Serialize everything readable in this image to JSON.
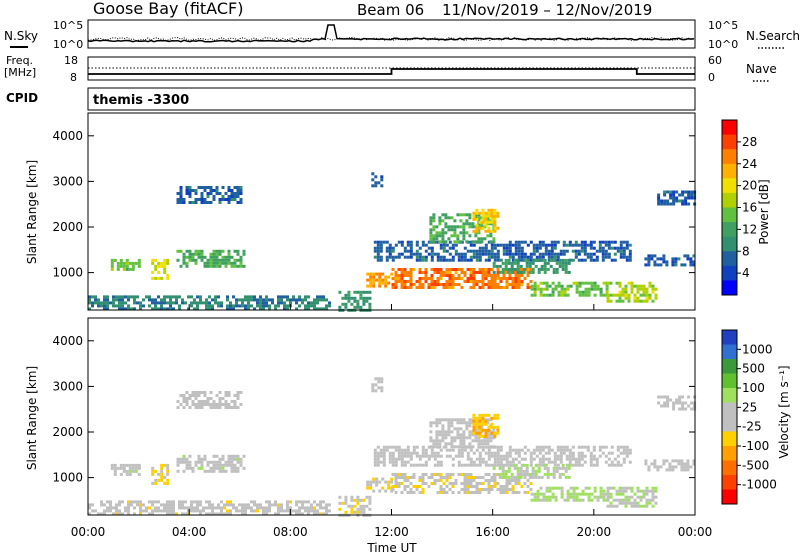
{
  "header": {
    "station": "Goose Bay (fitACF)",
    "beam": "Beam 06",
    "dates": "11/Nov/2019 – 12/Nov/2019"
  },
  "noise_panel": {
    "left_label": "N.Sky",
    "right_label": "N.Search",
    "left_ticks": [
      "10^5",
      "10^0"
    ],
    "right_ticks": [
      "10^5",
      "10^0"
    ]
  },
  "freq_panel": {
    "left_label_1": "Freq.",
    "left_label_2": "[MHz]",
    "right_label": "Nave",
    "left_ticks": [
      "18",
      "8"
    ],
    "right_ticks": [
      "60",
      "0"
    ]
  },
  "cpid_panel": {
    "label": "CPID",
    "mode": "themis -3300"
  },
  "power_colorbar": {
    "label": "Power [dB]",
    "ticks": [
      "28",
      "24",
      "20",
      "16",
      "12",
      "8",
      "4"
    ],
    "colors": [
      "#ff0000",
      "#ff4000",
      "#ff8000",
      "#ffb000",
      "#f0e000",
      "#b0d000",
      "#60c040",
      "#40a060",
      "#309070",
      "#2060a0",
      "#1040c0",
      "#0000ff"
    ]
  },
  "velocity_colorbar": {
    "label": "Velocity [m s⁻¹]",
    "ticks": [
      "1000",
      "500",
      "100",
      "25",
      "-25",
      "-100",
      "-500",
      "-1000"
    ],
    "colors": [
      "#2040c0",
      "#3070d0",
      "#3a9a3a",
      "#60c030",
      "#a0e060",
      "#c0c0c0",
      "#c0c0c0",
      "#ffd000",
      "#ffa000",
      "#ff7000",
      "#ff4000",
      "#ff0000"
    ]
  },
  "chart_data": [
    {
      "type": "heatmap",
      "title": "Power",
      "ylabel": "Slant Range [km]",
      "yticks": [
        "1000",
        "2000",
        "3000",
        "4000"
      ],
      "ylim": [
        180,
        4500
      ],
      "xlim": [
        0,
        24
      ],
      "zlabel": "Power [dB]",
      "zlim": [
        0,
        30
      ],
      "regions": [
        {
          "t0": 0.0,
          "t1": 9.6,
          "r0": 200,
          "r1": 500,
          "value": 8
        },
        {
          "t0": 0.9,
          "t1": 2.0,
          "r0": 1100,
          "r1": 1300,
          "value": 14
        },
        {
          "t0": 2.5,
          "t1": 3.2,
          "r0": 850,
          "r1": 1300,
          "value": 18
        },
        {
          "t0": 3.5,
          "t1": 6.2,
          "r0": 1150,
          "r1": 1500,
          "value": 12
        },
        {
          "t0": 3.5,
          "t1": 6.0,
          "r0": 2550,
          "r1": 2900,
          "value": 6
        },
        {
          "t0": 9.9,
          "t1": 11.2,
          "r0": 200,
          "r1": 600,
          "value": 10
        },
        {
          "t0": 11.0,
          "t1": 12.0,
          "r0": 700,
          "r1": 1000,
          "value": 22
        },
        {
          "t0": 11.3,
          "t1": 21.5,
          "r0": 1300,
          "r1": 1700,
          "value": 6
        },
        {
          "t0": 12.0,
          "t1": 17.5,
          "r0": 700,
          "r1": 1100,
          "value": 24
        },
        {
          "t0": 13.5,
          "t1": 16.0,
          "r0": 1700,
          "r1": 2300,
          "value": 12
        },
        {
          "t0": 15.2,
          "t1": 16.2,
          "r0": 1900,
          "r1": 2400,
          "value": 20
        },
        {
          "t0": 16.0,
          "t1": 19.0,
          "r0": 1000,
          "r1": 1300,
          "value": 10
        },
        {
          "t0": 17.5,
          "t1": 20.5,
          "r0": 500,
          "r1": 800,
          "value": 14
        },
        {
          "t0": 20.5,
          "t1": 22.5,
          "r0": 400,
          "r1": 800,
          "value": 16
        },
        {
          "t0": 22.0,
          "t1": 24.0,
          "r0": 1200,
          "r1": 1400,
          "value": 6
        },
        {
          "t0": 22.5,
          "t1": 24.0,
          "r0": 2500,
          "r1": 2800,
          "value": 6
        },
        {
          "t0": 11.2,
          "t1": 11.6,
          "r0": 2900,
          "r1": 3200,
          "value": 6
        }
      ]
    },
    {
      "type": "heatmap",
      "title": "Velocity",
      "ylabel": "Slant Range [km]",
      "yticks": [
        "1000",
        "2000",
        "3000",
        "4000"
      ],
      "ylim": [
        180,
        4500
      ],
      "xlim": [
        0,
        24
      ],
      "zlabel": "Velocity [m s⁻¹]",
      "zlim": [
        -1000,
        1000
      ],
      "regions": [
        {
          "t0": 0.0,
          "t1": 9.6,
          "r0": 200,
          "r1": 500,
          "value": -60
        },
        {
          "t0": 0.9,
          "t1": 2.0,
          "r0": 1100,
          "r1": 1300,
          "value": 80
        },
        {
          "t0": 2.5,
          "t1": 3.2,
          "r0": 850,
          "r1": 1300,
          "value": -200
        },
        {
          "t0": 3.5,
          "t1": 6.2,
          "r0": 1150,
          "r1": 1500,
          "value": 60
        },
        {
          "t0": 3.5,
          "t1": 6.0,
          "r0": 2550,
          "r1": 2900,
          "value": 0
        },
        {
          "t0": 9.9,
          "t1": 11.2,
          "r0": 200,
          "r1": 600,
          "value": -80
        },
        {
          "t0": 11.0,
          "t1": 12.0,
          "r0": 700,
          "r1": 1000,
          "value": -120
        },
        {
          "t0": 11.3,
          "t1": 21.5,
          "r0": 1300,
          "r1": 1700,
          "value": 0
        },
        {
          "t0": 12.0,
          "t1": 17.5,
          "r0": 700,
          "r1": 1100,
          "value": -100
        },
        {
          "t0": 13.5,
          "t1": 16.0,
          "r0": 1700,
          "r1": 2300,
          "value": 0
        },
        {
          "t0": 15.2,
          "t1": 16.2,
          "r0": 1900,
          "r1": 2400,
          "value": -300
        },
        {
          "t0": 16.0,
          "t1": 19.0,
          "r0": 1000,
          "r1": 1300,
          "value": 150
        },
        {
          "t0": 17.5,
          "t1": 20.5,
          "r0": 500,
          "r1": 800,
          "value": 200
        },
        {
          "t0": 20.5,
          "t1": 22.5,
          "r0": 400,
          "r1": 800,
          "value": 120
        },
        {
          "t0": 22.0,
          "t1": 24.0,
          "r0": 1200,
          "r1": 1400,
          "value": 0
        },
        {
          "t0": 22.5,
          "t1": 24.0,
          "r0": 2500,
          "r1": 2800,
          "value": 0
        },
        {
          "t0": 11.2,
          "t1": 11.6,
          "r0": 2900,
          "r1": 3200,
          "value": 0
        }
      ]
    }
  ],
  "x_axis": {
    "label": "Time UT",
    "ticks": [
      "00:00",
      "04:00",
      "08:00",
      "12:00",
      "16:00",
      "20:00",
      "00:00"
    ]
  }
}
